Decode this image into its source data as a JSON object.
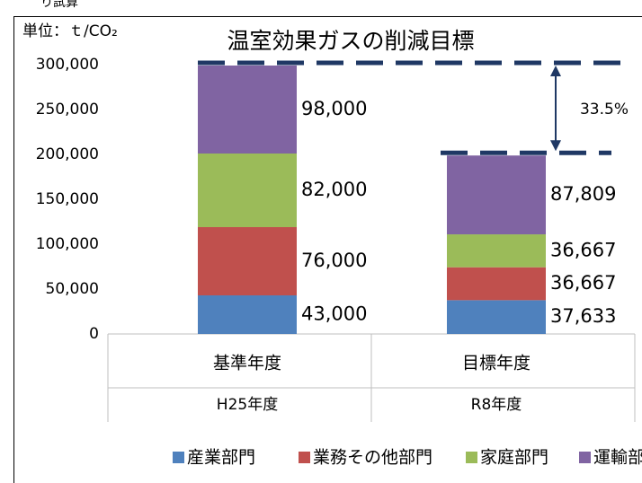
{
  "page_note": "り試算",
  "chart_data": {
    "type": "stacked_bar",
    "title": "温室効果ガスの削減目標",
    "unit_label": "単位：ｔ/CO₂",
    "categories": [
      "基準年度",
      "目標年度"
    ],
    "subcategories": [
      "H25年度",
      "R8年度"
    ],
    "series": [
      {
        "name": "産業部門",
        "color": "#4f81bd",
        "values": [
          43000,
          37633
        ],
        "value_labels": [
          "43,000",
          "37,633"
        ]
      },
      {
        "name": "業務その他部門",
        "color": "#c0504d",
        "values": [
          76000,
          36667
        ],
        "value_labels": [
          "76,000",
          "36,667"
        ]
      },
      {
        "name": "家庭部門",
        "color": "#9bbb59",
        "values": [
          82000,
          36667
        ],
        "value_labels": [
          "82,000",
          "36,667"
        ]
      },
      {
        "name": "運輸部門",
        "color": "#8064a2",
        "values": [
          98000,
          87809
        ],
        "value_labels": [
          "98,000",
          "87,809"
        ]
      }
    ],
    "ylim": [
      0,
      300000
    ],
    "yticks": [
      0,
      {
        "value": 50000,
        "label": "50,000"
      },
      {
        "value": 100000,
        "label": "100,000"
      },
      {
        "value": 150000,
        "label": "150,000"
      },
      {
        "value": 200000,
        "label": "200,000"
      },
      {
        "value": 250000,
        "label": "250,000"
      },
      {
        "value": 300000,
        "label": "300,000"
      }
    ],
    "annotation": "33.5%",
    "legend": "bottom"
  }
}
